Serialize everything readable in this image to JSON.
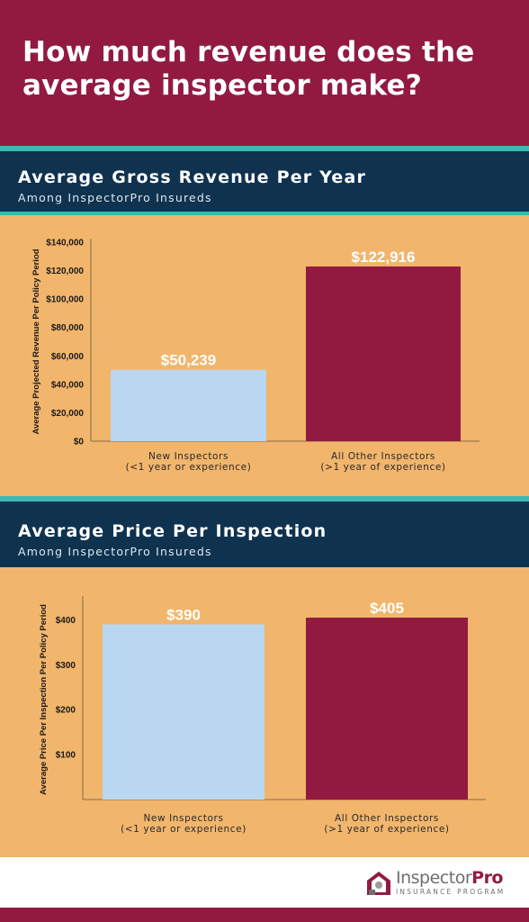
{
  "header": {
    "title": "How much revenue does the average inspector make?"
  },
  "sections": [
    {
      "title": "Average Gross Revenue Per Year",
      "subtitle": "Among InspectorPro Insureds"
    },
    {
      "title": "Average Price Per Inspection",
      "subtitle": "Among InspectorPro Insureds"
    }
  ],
  "chart_data": [
    {
      "type": "bar",
      "categories": [
        [
          "New Inspectors",
          "(<1 year or experience)"
        ],
        [
          "All Other Inspectors",
          "(>1 year of experience)"
        ]
      ],
      "values": [
        50239,
        122916
      ],
      "data_labels": [
        "$50,239",
        "$122,916"
      ],
      "colors": [
        "#b9d7f0",
        "#921a40"
      ],
      "ylabel": "Average Projected Revenue Per Policy Period",
      "ylim": [
        0,
        140000
      ],
      "yticks": [
        0,
        20000,
        40000,
        60000,
        80000,
        100000,
        120000,
        140000
      ],
      "ytick_labels": [
        "$0",
        "$20,000",
        "$40,000",
        "$60,000",
        "$80,000",
        "$100,000",
        "$120,000",
        "$140,000"
      ],
      "grid": false
    },
    {
      "type": "bar",
      "categories": [
        [
          "New Inspectors",
          "(<1 year or experience)"
        ],
        [
          "All Other Inspectors",
          "(>1 year of experience)"
        ]
      ],
      "values": [
        390,
        405
      ],
      "data_labels": [
        "$390",
        "$405"
      ],
      "colors": [
        "#b9d7f0",
        "#921a40"
      ],
      "ylabel": "Average Price Per Inspection Per Policy Period",
      "ylim": [
        0,
        445
      ],
      "yticks": [
        100,
        200,
        300,
        400
      ],
      "ytick_labels": [
        "$100",
        "$200",
        "$300",
        "$400"
      ],
      "grid": false
    }
  ],
  "footer": {
    "logo_text_a": "Inspector",
    "logo_text_b": "Pro",
    "logo_tagline": "INSURANCE PROGRAM",
    "logo_icon": "house-shield-icon"
  }
}
